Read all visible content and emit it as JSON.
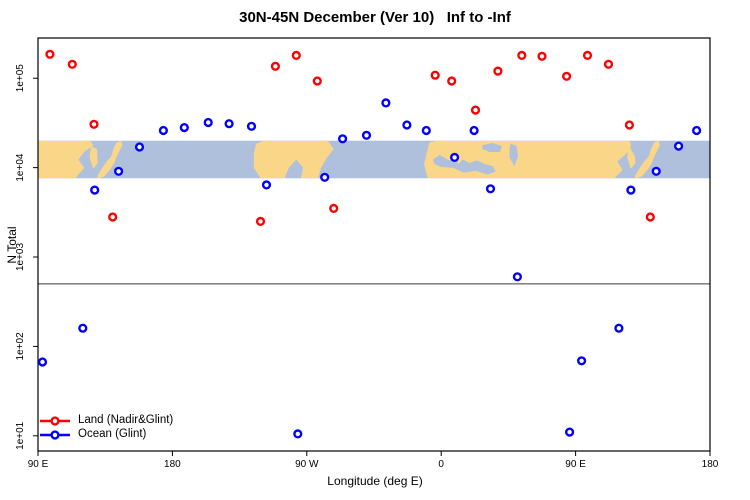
{
  "title": "30N-45N December (Ver 10)   Inf to -Inf",
  "legend": {
    "items": [
      {
        "label": "Land (Nadir&Glint)",
        "color": "#ff0000"
      },
      {
        "label": "Ocean (Glint)",
        "color": "#0000ff"
      }
    ]
  },
  "chart_data": {
    "type": "scatter",
    "title": "30N-45N December (Ver 10)   Inf to -Inf",
    "xlabel": "Longitude (deg E)",
    "ylabel": "N Total",
    "x_axis": {
      "range": [
        90,
        540
      ],
      "ticks": [
        90,
        180,
        270,
        360,
        450,
        540
      ],
      "labels": [
        "90 E",
        "180",
        "90 W",
        "0",
        "90 E",
        "180"
      ]
    },
    "y_axis": {
      "scale": "log10",
      "range_log10": [
        0.83,
        5.45
      ],
      "ticks": [
        10,
        100,
        1000,
        10000,
        100000
      ],
      "labels": [
        "1e+01",
        "1e+02",
        "1e+03",
        "1e+04",
        "1e+05"
      ]
    },
    "hline": {
      "y": 500,
      "color": "#3a3a3a"
    },
    "map_band": {
      "n_min": 7600,
      "n_max": 20000,
      "ocean_color": "#aec0dc",
      "land_color": "#fad689",
      "land_polys": [
        [
          [
            90,
            0
          ],
          [
            125,
            0
          ],
          [
            127,
            0.12
          ],
          [
            121,
            0.3
          ],
          [
            117,
            0.5
          ],
          [
            121,
            0.72
          ],
          [
            115,
            1
          ],
          [
            90,
            1
          ]
        ],
        [
          [
            125.5,
            0.15
          ],
          [
            129.5,
            0.22
          ],
          [
            130,
            0.6
          ],
          [
            127,
            0.75
          ],
          [
            124.5,
            0.45
          ]
        ],
        [
          [
            130,
            0.92
          ],
          [
            133,
            0.72
          ],
          [
            136,
            0.55
          ],
          [
            139,
            0.42
          ],
          [
            140.5,
            0.22
          ],
          [
            142.5,
            0.05
          ],
          [
            145.5,
            0
          ],
          [
            146.5,
            0.12
          ],
          [
            143.5,
            0.35
          ],
          [
            141,
            0.6
          ],
          [
            138,
            0.78
          ],
          [
            134.5,
            0.95
          ],
          [
            131,
            1
          ],
          [
            129.5,
            1
          ]
        ],
        [
          [
            234.5,
            0.35
          ],
          [
            236,
            0.08
          ],
          [
            241,
            0
          ],
          [
            284,
            0
          ],
          [
            288,
            0.22
          ],
          [
            283.5,
            0.45
          ],
          [
            279.5,
            0.72
          ],
          [
            277.5,
            1
          ],
          [
            266,
            1
          ],
          [
            267.5,
            0.72
          ],
          [
            263,
            0.5
          ],
          [
            258,
            0.72
          ],
          [
            255,
            1
          ],
          [
            239,
            1
          ],
          [
            234.5,
            0.72
          ]
        ],
        [
          [
            351,
            1
          ],
          [
            348.5,
            0.62
          ],
          [
            350.5,
            0.3
          ],
          [
            352,
            0.05
          ],
          [
            357,
            0
          ],
          [
            486,
            0
          ],
          [
            488,
            0.18
          ],
          [
            483,
            0.38
          ],
          [
            478,
            0.55
          ],
          [
            481.5,
            0.78
          ],
          [
            476,
            1
          ]
        ],
        [
          [
            485.5,
            0.15
          ],
          [
            489.5,
            0.22
          ],
          [
            490,
            0.6
          ],
          [
            487,
            0.75
          ],
          [
            484.5,
            0.45
          ]
        ],
        [
          [
            490,
            0.92
          ],
          [
            493,
            0.72
          ],
          [
            496,
            0.55
          ],
          [
            499,
            0.42
          ],
          [
            500.5,
            0.22
          ],
          [
            502.5,
            0.05
          ],
          [
            505.5,
            0
          ],
          [
            506.5,
            0.12
          ],
          [
            503.5,
            0.35
          ],
          [
            501,
            0.6
          ],
          [
            498,
            0.78
          ],
          [
            494.5,
            0.95
          ],
          [
            491,
            1
          ],
          [
            489.5,
            1
          ]
        ]
      ],
      "sea_polys": [
        [
          [
            354.5,
            0.5
          ],
          [
            359,
            0.38
          ],
          [
            365,
            0.52
          ],
          [
            370,
            0.45
          ],
          [
            371.5,
            0.62
          ],
          [
            374.5,
            0.5
          ],
          [
            379,
            0.6
          ],
          [
            384,
            0.52
          ],
          [
            389,
            0.62
          ],
          [
            394.5,
            0.68
          ],
          [
            396.5,
            0.82
          ],
          [
            391,
            0.9
          ],
          [
            383,
            0.8
          ],
          [
            375,
            0.85
          ],
          [
            368,
            0.72
          ],
          [
            360,
            0.7
          ],
          [
            355.5,
            0.62
          ]
        ],
        [
          [
            387.5,
            0.12
          ],
          [
            394,
            0.06
          ],
          [
            400.5,
            0.14
          ],
          [
            399.5,
            0.3
          ],
          [
            392.5,
            0.3
          ],
          [
            387.5,
            0.22
          ]
        ],
        [
          [
            406.5,
            0.08
          ],
          [
            410.5,
            0.14
          ],
          [
            411.5,
            0.42
          ],
          [
            409,
            0.68
          ],
          [
            405.8,
            0.45
          ],
          [
            405.8,
            0.2
          ]
        ],
        [
          [
            487.5,
            0.05
          ],
          [
            494,
            0.1
          ],
          [
            497.5,
            0.32
          ],
          [
            494.5,
            0.55
          ],
          [
            489.5,
            0.4
          ],
          [
            486.5,
            0.18
          ]
        ]
      ]
    },
    "series": [
      {
        "name": "Land (Nadir&Glint)",
        "color": "#ff0000",
        "points": [
          [
            98,
            185000
          ],
          [
            113,
            143000
          ],
          [
            127.5,
            30500
          ],
          [
            140,
            2800
          ],
          [
            239,
            2500
          ],
          [
            249,
            136000
          ],
          [
            263,
            180000
          ],
          [
            277,
            93000
          ],
          [
            288,
            3500
          ],
          [
            356,
            108000
          ],
          [
            367,
            93000
          ],
          [
            383,
            44000
          ],
          [
            398,
            120000
          ],
          [
            414,
            180000
          ],
          [
            427.5,
            176000
          ],
          [
            444,
            105000
          ],
          [
            458,
            180000
          ],
          [
            472,
            143000
          ],
          [
            486,
            30000
          ],
          [
            500,
            2800
          ]
        ]
      },
      {
        "name": "Ocean (Glint)",
        "color": "#0000ff",
        "points": [
          [
            93,
            67
          ],
          [
            120,
            160
          ],
          [
            128,
            5600
          ],
          [
            144,
            9100
          ],
          [
            158,
            17000
          ],
          [
            174,
            26000
          ],
          [
            188,
            28000
          ],
          [
            204,
            32000
          ],
          [
            218,
            31000
          ],
          [
            233,
            29000
          ],
          [
            243,
            6400
          ],
          [
            264,
            10.5
          ],
          [
            282,
            7800
          ],
          [
            294,
            21000
          ],
          [
            310,
            23000
          ],
          [
            323,
            53000
          ],
          [
            337,
            30000
          ],
          [
            350,
            26000
          ],
          [
            369,
            13000
          ],
          [
            382,
            26000
          ],
          [
            393,
            5800
          ],
          [
            411,
            600
          ],
          [
            446,
            11
          ],
          [
            454,
            69
          ],
          [
            479,
            160
          ],
          [
            487,
            5600
          ],
          [
            504,
            9100
          ],
          [
            519,
            17400
          ],
          [
            531,
            26000
          ]
        ]
      }
    ]
  }
}
